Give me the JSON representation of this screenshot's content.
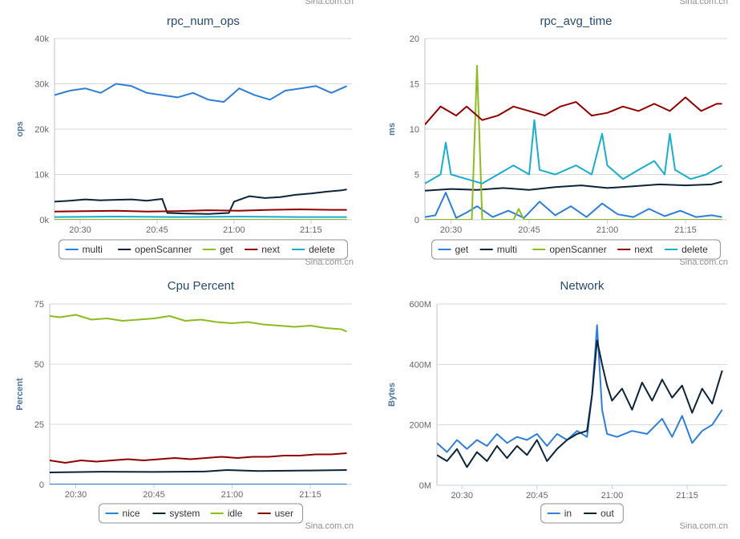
{
  "credit": "Sina.com.cn",
  "chart_data": [
    {
      "type": "line",
      "title": "rpc_num_ops",
      "ylabel": "ops",
      "ylim": [
        0,
        40000
      ],
      "y_ticks": [
        0,
        10000,
        20000,
        30000,
        40000
      ],
      "y_tick_labels": [
        "0k",
        "10k",
        "20k",
        "30k",
        "40k"
      ],
      "xlim": [
        "20:25",
        "21:23"
      ],
      "x_ticks": [
        "20:30",
        "20:45",
        "21:00",
        "21:15"
      ],
      "grid": true,
      "legend": "bottom-center",
      "series": [
        {
          "name": "multi",
          "color": "#2f7ed8",
          "x": [
            "20:25",
            "20:28",
            "20:31",
            "20:34",
            "20:37",
            "20:40",
            "20:43",
            "20:46",
            "20:49",
            "20:52",
            "20:55",
            "20:58",
            "21:01",
            "21:04",
            "21:07",
            "21:10",
            "21:13",
            "21:16",
            "21:19",
            "21:22"
          ],
          "values": [
            27500,
            28500,
            29000,
            28000,
            30000,
            29500,
            28000,
            27500,
            27000,
            28000,
            26500,
            26000,
            29000,
            27500,
            26500,
            28500,
            29000,
            29500,
            28000,
            29500
          ]
        },
        {
          "name": "openScanner",
          "color": "#0d233a",
          "x": [
            "20:25",
            "20:28",
            "20:31",
            "20:34",
            "20:37",
            "20:40",
            "20:43",
            "20:46",
            "20:47",
            "20:50",
            "20:55",
            "20:59",
            "21:00",
            "21:03",
            "21:06",
            "21:09",
            "21:12",
            "21:15",
            "21:18",
            "21:21",
            "21:22"
          ],
          "values": [
            4000,
            4200,
            4500,
            4300,
            4400,
            4500,
            4200,
            4600,
            1500,
            1400,
            1300,
            1500,
            4000,
            5200,
            4800,
            5000,
            5500,
            5800,
            6200,
            6500,
            6700
          ]
        },
        {
          "name": "get",
          "color": "#8bbc21",
          "x": [
            "20:25",
            "21:22"
          ],
          "values": [
            0,
            0
          ]
        },
        {
          "name": "next",
          "color": "#910000",
          "x": [
            "20:25",
            "20:31",
            "20:37",
            "20:43",
            "20:49",
            "20:55",
            "21:01",
            "21:07",
            "21:13",
            "21:19",
            "21:22"
          ],
          "values": [
            1800,
            1900,
            2000,
            1800,
            1900,
            2100,
            2000,
            2200,
            2300,
            2200,
            2200
          ]
        },
        {
          "name": "delete",
          "color": "#1aadce",
          "x": [
            "20:25",
            "20:37",
            "20:49",
            "21:01",
            "21:13",
            "21:22"
          ],
          "values": [
            600,
            700,
            600,
            700,
            600,
            600
          ]
        }
      ]
    },
    {
      "type": "line",
      "title": "rpc_avg_time",
      "ylabel": "ms",
      "ylim": [
        0,
        20
      ],
      "y_ticks": [
        0,
        5,
        10,
        15,
        20
      ],
      "y_tick_labels": [
        "0",
        "5",
        "10",
        "15",
        "20"
      ],
      "xlim": [
        "20:25",
        "21:23"
      ],
      "x_ticks": [
        "20:30",
        "20:45",
        "21:00",
        "21:15"
      ],
      "grid": true,
      "legend": "bottom-center",
      "series": [
        {
          "name": "get",
          "color": "#2f7ed8",
          "x": [
            "20:25",
            "20:27",
            "20:29",
            "20:31",
            "20:33",
            "20:35",
            "20:38",
            "20:41",
            "20:44",
            "20:47",
            "20:50",
            "20:53",
            "20:56",
            "20:59",
            "21:02",
            "21:05",
            "21:08",
            "21:11",
            "21:14",
            "21:17",
            "21:20",
            "21:22"
          ],
          "values": [
            0.3,
            0.5,
            3.0,
            0.2,
            0.8,
            1.5,
            0.3,
            1.0,
            0.2,
            2.0,
            0.5,
            1.5,
            0.3,
            1.8,
            0.6,
            0.3,
            1.2,
            0.4,
            1.0,
            0.3,
            0.5,
            0.3
          ]
        },
        {
          "name": "multi",
          "color": "#0d233a",
          "x": [
            "20:25",
            "20:30",
            "20:35",
            "20:40",
            "20:45",
            "20:50",
            "20:55",
            "21:00",
            "21:05",
            "21:10",
            "21:15",
            "21:20",
            "21:22"
          ],
          "values": [
            3.2,
            3.4,
            3.3,
            3.5,
            3.3,
            3.6,
            3.8,
            3.5,
            3.7,
            3.9,
            3.8,
            3.9,
            4.2
          ]
        },
        {
          "name": "openScanner",
          "color": "#8bbc21",
          "x": [
            "20:25",
            "20:34",
            "20:35",
            "20:36",
            "20:42",
            "20:43",
            "20:44",
            "21:22"
          ],
          "values": [
            0,
            0,
            17.0,
            0,
            0,
            1.2,
            0,
            0
          ]
        },
        {
          "name": "next",
          "color": "#910000",
          "x": [
            "20:25",
            "20:28",
            "20:31",
            "20:33",
            "20:36",
            "20:39",
            "20:42",
            "20:45",
            "20:48",
            "20:51",
            "20:54",
            "20:57",
            "21:00",
            "21:03",
            "21:06",
            "21:09",
            "21:12",
            "21:15",
            "21:18",
            "21:21",
            "21:22"
          ],
          "values": [
            10.5,
            12.5,
            11.5,
            12.5,
            11.0,
            11.5,
            12.5,
            12.0,
            11.5,
            12.5,
            13.0,
            11.5,
            11.8,
            12.5,
            12.0,
            12.8,
            12.0,
            13.5,
            12.0,
            12.8,
            12.8
          ]
        },
        {
          "name": "delete",
          "color": "#1aadce",
          "x": [
            "20:25",
            "20:28",
            "20:29",
            "20:30",
            "20:33",
            "20:36",
            "20:39",
            "20:42",
            "20:45",
            "20:46",
            "20:47",
            "20:50",
            "20:54",
            "20:57",
            "20:59",
            "21:00",
            "21:03",
            "21:06",
            "21:09",
            "21:11",
            "21:12",
            "21:13",
            "21:16",
            "21:19",
            "21:22"
          ],
          "values": [
            4.0,
            5.0,
            8.5,
            5.0,
            4.5,
            4.0,
            5.0,
            6.0,
            5.0,
            11.0,
            5.5,
            5.0,
            6.0,
            5.0,
            9.5,
            6.0,
            4.5,
            5.5,
            6.5,
            5.0,
            9.5,
            5.5,
            4.5,
            5.0,
            6.0
          ]
        }
      ]
    },
    {
      "type": "line",
      "title": "Cpu Percent",
      "ylabel": "Percent",
      "ylim": [
        0,
        75
      ],
      "y_ticks": [
        0,
        25,
        50,
        75
      ],
      "y_tick_labels": [
        "0",
        "25",
        "50",
        "75"
      ],
      "xlim": [
        "20:25",
        "21:23"
      ],
      "x_ticks": [
        "20:30",
        "20:45",
        "21:00",
        "21:15"
      ],
      "grid": true,
      "legend": "bottom-center",
      "series": [
        {
          "name": "nice",
          "color": "#2f7ed8",
          "x": [
            "20:25",
            "21:22"
          ],
          "values": [
            0,
            0
          ]
        },
        {
          "name": "system",
          "color": "#0d233a",
          "x": [
            "20:25",
            "20:35",
            "20:45",
            "20:55",
            "20:59",
            "21:05",
            "21:15",
            "21:22"
          ],
          "values": [
            5.0,
            5.3,
            5.2,
            5.4,
            6.0,
            5.6,
            5.8,
            6.0
          ]
        },
        {
          "name": "idle",
          "color": "#8bbc21",
          "x": [
            "20:25",
            "20:27",
            "20:30",
            "20:33",
            "20:36",
            "20:39",
            "20:42",
            "20:45",
            "20:48",
            "20:51",
            "20:54",
            "20:57",
            "21:00",
            "21:03",
            "21:06",
            "21:09",
            "21:12",
            "21:15",
            "21:18",
            "21:21",
            "21:22"
          ],
          "values": [
            70,
            69.5,
            70.5,
            68.5,
            69,
            68,
            68.5,
            69,
            70,
            68,
            68.5,
            67.5,
            67,
            67.5,
            66.5,
            66,
            65.5,
            66,
            65,
            64.5,
            63.5
          ]
        },
        {
          "name": "user",
          "color": "#910000",
          "x": [
            "20:25",
            "20:28",
            "20:31",
            "20:34",
            "20:37",
            "20:40",
            "20:43",
            "20:46",
            "20:49",
            "20:52",
            "20:55",
            "20:58",
            "21:01",
            "21:04",
            "21:07",
            "21:10",
            "21:13",
            "21:16",
            "21:19",
            "21:22"
          ],
          "values": [
            10,
            9,
            10,
            9.5,
            10,
            10.5,
            10,
            10.5,
            11,
            10.5,
            11,
            11.5,
            11,
            11.5,
            11.5,
            12,
            12,
            12.5,
            12.5,
            13
          ]
        }
      ]
    },
    {
      "type": "line",
      "title": "Network",
      "ylabel": "Bytes",
      "ylim": [
        0,
        600
      ],
      "y_ticks": [
        0,
        200,
        400,
        600
      ],
      "y_tick_labels": [
        "0M",
        "200M",
        "400M",
        "600M"
      ],
      "xlim": [
        "20:25",
        "21:23"
      ],
      "x_ticks": [
        "20:30",
        "20:45",
        "21:00",
        "21:15"
      ],
      "grid": true,
      "legend": "bottom-center",
      "series": [
        {
          "name": "in",
          "color": "#2f7ed8",
          "x": [
            "20:25",
            "20:27",
            "20:29",
            "20:31",
            "20:33",
            "20:35",
            "20:37",
            "20:39",
            "20:41",
            "20:43",
            "20:45",
            "20:47",
            "20:49",
            "20:51",
            "20:53",
            "20:55",
            "20:56",
            "20:57",
            "20:58",
            "20:59",
            "21:01",
            "21:04",
            "21:07",
            "21:10",
            "21:12",
            "21:14",
            "21:16",
            "21:18",
            "21:20",
            "21:22"
          ],
          "values": [
            140,
            110,
            150,
            120,
            150,
            130,
            170,
            140,
            160,
            150,
            170,
            130,
            170,
            150,
            180,
            160,
            300,
            530,
            250,
            170,
            160,
            180,
            170,
            220,
            160,
            230,
            140,
            180,
            200,
            250
          ]
        },
        {
          "name": "out",
          "color": "#0d233a",
          "x": [
            "20:25",
            "20:27",
            "20:29",
            "20:31",
            "20:33",
            "20:35",
            "20:37",
            "20:39",
            "20:41",
            "20:43",
            "20:45",
            "20:47",
            "20:49",
            "20:51",
            "20:53",
            "20:55",
            "20:56",
            "20:57",
            "20:58",
            "20:59",
            "21:00",
            "21:02",
            "21:04",
            "21:06",
            "21:08",
            "21:10",
            "21:12",
            "21:14",
            "21:16",
            "21:18",
            "21:20",
            "21:22"
          ],
          "values": [
            100,
            80,
            120,
            60,
            110,
            80,
            130,
            90,
            130,
            100,
            150,
            80,
            120,
            150,
            170,
            180,
            300,
            480,
            400,
            330,
            280,
            320,
            250,
            340,
            280,
            350,
            290,
            330,
            240,
            320,
            270,
            380
          ]
        }
      ]
    }
  ]
}
